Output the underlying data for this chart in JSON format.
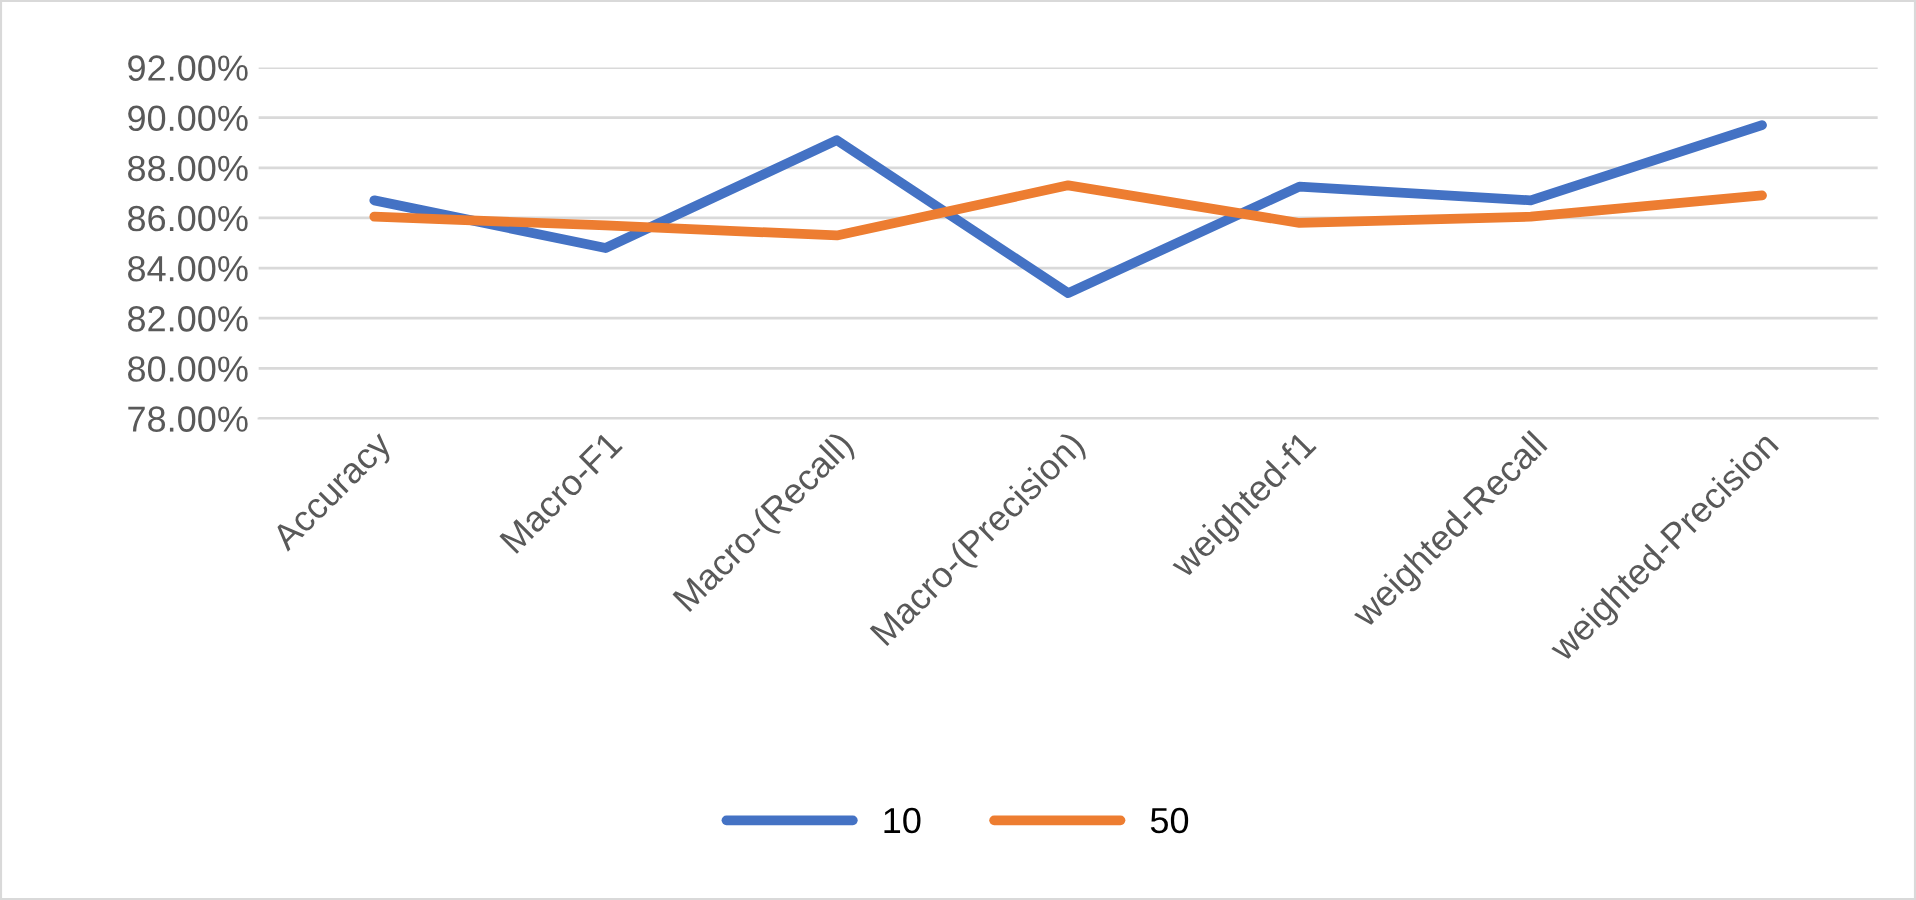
{
  "chart_data": {
    "type": "line",
    "categories": [
      "Accuracy",
      "Macro-F1",
      "Macro-(Recall)",
      "Macro-(Precision)",
      "weighted-f1",
      "weighted-Recall",
      "weighted-Precision"
    ],
    "series": [
      {
        "name": "10",
        "color": "#4472c4",
        "values": [
          86.7,
          84.8,
          89.1,
          83.0,
          87.25,
          86.7,
          89.7
        ]
      },
      {
        "name": "50",
        "color": "#ed7d31",
        "values": [
          86.05,
          85.7,
          85.3,
          87.3,
          85.8,
          86.05,
          86.9
        ]
      }
    ],
    "ylim": [
      78,
      92
    ],
    "yticks": [
      {
        "value": 78,
        "label": "78.00%"
      },
      {
        "value": 80,
        "label": "80.00%"
      },
      {
        "value": 82,
        "label": "82.00%"
      },
      {
        "value": 84,
        "label": "84.00%"
      },
      {
        "value": 86,
        "label": "86.00%"
      },
      {
        "value": 88,
        "label": "88.00%"
      },
      {
        "value": 90,
        "label": "90.00%"
      },
      {
        "value": 92,
        "label": "92.00%"
      }
    ],
    "grid": "y",
    "legend": "bottom",
    "marker": "none",
    "line_style": "solid"
  }
}
